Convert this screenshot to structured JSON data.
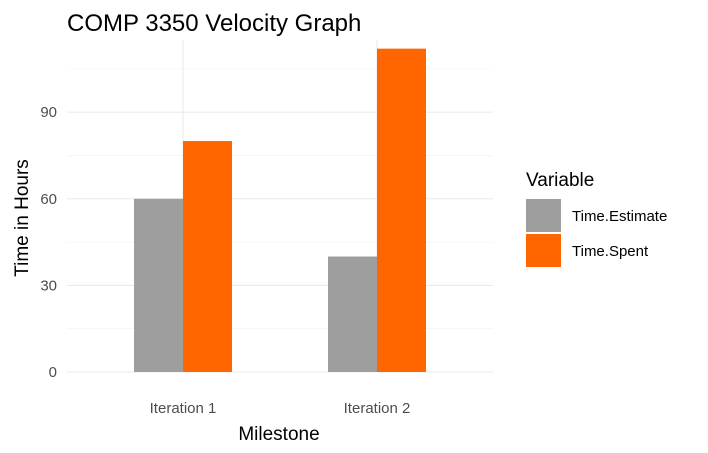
{
  "chart_data": {
    "type": "bar",
    "title": "COMP 3350 Velocity Graph",
    "xlabel": "Milestone",
    "ylabel": "Time in Hours",
    "categories": [
      "Iteration 1",
      "Iteration 2"
    ],
    "series": [
      {
        "name": "Time.Estimate",
        "values": [
          60,
          40
        ],
        "color": "#9e9e9e"
      },
      {
        "name": "Time.Spent",
        "values": [
          80,
          112
        ],
        "color": "#ff6600"
      }
    ],
    "yticks": [
      0,
      30,
      60,
      90
    ],
    "ylim": [
      0,
      112
    ],
    "grid": true,
    "legend": {
      "title": "Variable",
      "position": "right"
    }
  }
}
